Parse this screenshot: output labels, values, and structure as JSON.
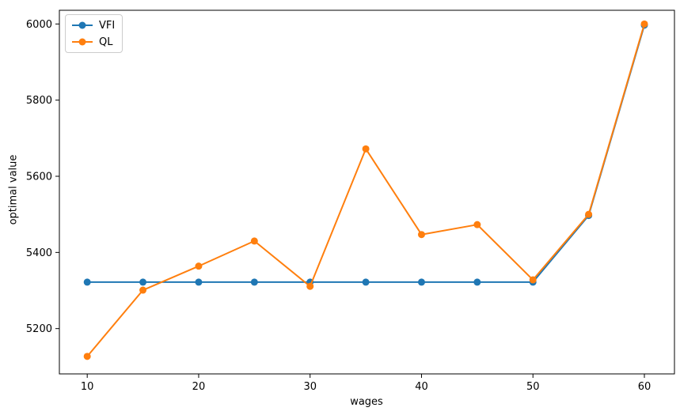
{
  "figure": {
    "background_color": "#ffffff",
    "text_color": "#000000",
    "spine_color": "#000000"
  },
  "chart_data": {
    "type": "line",
    "title": "",
    "xlabel": "wages",
    "ylabel": "optimal value",
    "x": [
      10,
      15,
      20,
      25,
      30,
      35,
      40,
      45,
      50,
      55,
      60
    ],
    "series": [
      {
        "name": "VFI",
        "color": "#1f77b4",
        "marker": "o",
        "values": [
          5322,
          5322,
          5322,
          5322,
          5322,
          5322,
          5322,
          5322,
          5322,
          5497,
          5997
        ]
      },
      {
        "name": "QL",
        "color": "#ff7f0e",
        "marker": "o",
        "values": [
          5127,
          5301,
          5364,
          5430,
          5311,
          5672,
          5447,
          5473,
          5328,
          5500,
          6000
        ]
      }
    ],
    "xlim": [
      7.5,
      62.7
    ],
    "ylim": [
      5081,
      6036
    ],
    "x_ticks": [
      10,
      20,
      30,
      40,
      50,
      60
    ],
    "y_ticks": [
      5200,
      5400,
      5600,
      5800,
      6000
    ],
    "grid": false,
    "legend_position": "upper left"
  }
}
